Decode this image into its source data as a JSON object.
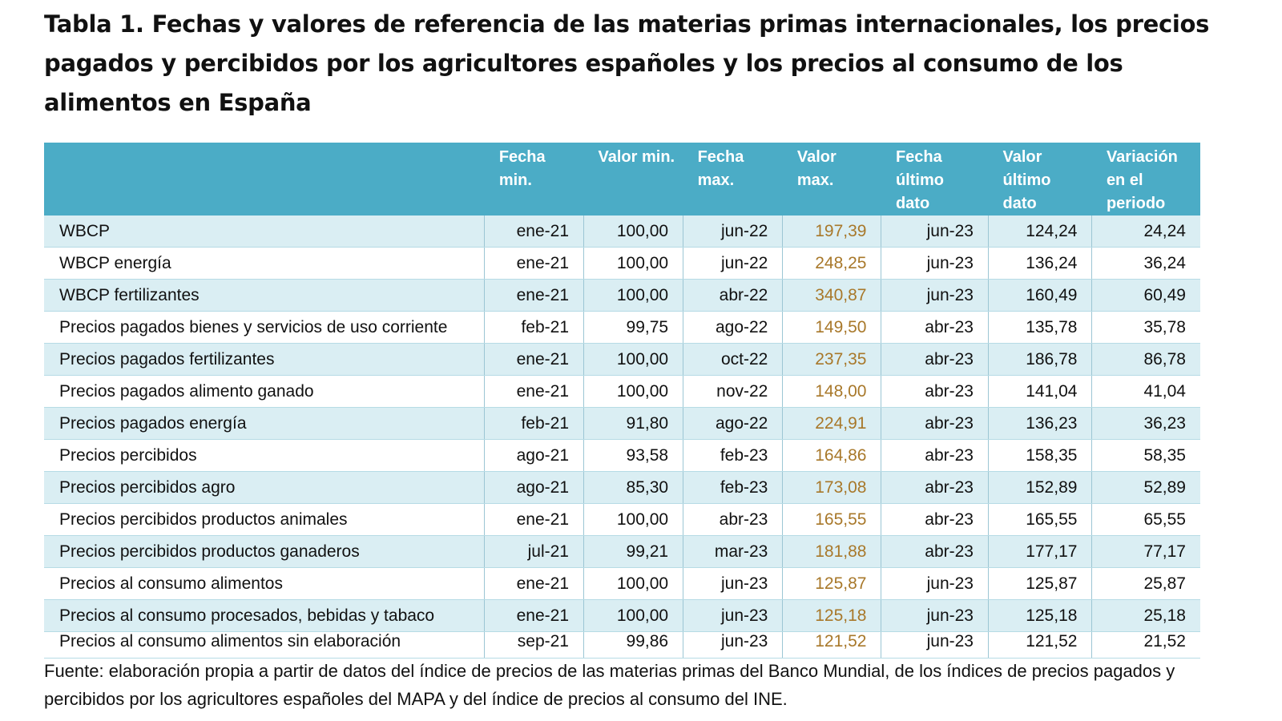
{
  "title": "Tabla 1. Fechas y valores de referencia de las materias primas internacionales, los precios pagados y percibidos por los agricultores españoles y los precios al consumo de los alimentos en España",
  "colors": {
    "header_bg": "#4bacc6",
    "row_alt": "#daeef3",
    "valor_max_text": "#a8782a"
  },
  "headers": [
    "",
    "Fecha min.",
    "Valor min.",
    "Fecha max.",
    "Valor max.",
    "Fecha último dato",
    "Valor último dato",
    "Variación en el periodo"
  ],
  "rows": [
    [
      "WBCP",
      "ene-21",
      "100,00",
      "jun-22",
      "197,39",
      "jun-23",
      "124,24",
      "24,24"
    ],
    [
      "WBCP energía",
      "ene-21",
      "100,00",
      "jun-22",
      "248,25",
      "jun-23",
      "136,24",
      "36,24"
    ],
    [
      "WBCP fertilizantes",
      "ene-21",
      "100,00",
      "abr-22",
      "340,87",
      "jun-23",
      "160,49",
      "60,49"
    ],
    [
      "Precios pagados bienes y servicios de uso corriente",
      "feb-21",
      "99,75",
      "ago-22",
      "149,50",
      "abr-23",
      "135,78",
      "35,78"
    ],
    [
      "Precios pagados fertilizantes",
      "ene-21",
      "100,00",
      "oct-22",
      "237,35",
      "abr-23",
      "186,78",
      "86,78"
    ],
    [
      "Precios pagados alimento ganado",
      "ene-21",
      "100,00",
      "nov-22",
      "148,00",
      "abr-23",
      "141,04",
      "41,04"
    ],
    [
      "Precios pagados energía",
      "feb-21",
      "91,80",
      "ago-22",
      "224,91",
      "abr-23",
      "136,23",
      "36,23"
    ],
    [
      "Precios percibidos",
      "ago-21",
      "93,58",
      "feb-23",
      "164,86",
      "abr-23",
      "158,35",
      "58,35"
    ],
    [
      "Precios percibidos agro",
      "ago-21",
      "85,30",
      "feb-23",
      "173,08",
      "abr-23",
      "152,89",
      "52,89"
    ],
    [
      "Precios percibidos productos animales",
      "ene-21",
      "100,00",
      "abr-23",
      "165,55",
      "abr-23",
      "165,55",
      "65,55"
    ],
    [
      "Precios percibidos productos ganaderos",
      "jul-21",
      "99,21",
      "mar-23",
      "181,88",
      "abr-23",
      "177,17",
      "77,17"
    ],
    [
      "Precios al consumo alimentos",
      "ene-21",
      "100,00",
      "jun-23",
      "125,87",
      "jun-23",
      "125,87",
      "25,87"
    ],
    [
      "Precios al consumo procesados, bebidas y tabaco",
      "ene-21",
      "100,00",
      "jun-23",
      "125,18",
      "jun-23",
      "125,18",
      "25,18"
    ],
    [
      "Precios al consumo alimentos sin elaboración",
      "sep-21",
      "99,86",
      "jun-23",
      "121,52",
      "jun-23",
      "121,52",
      "21,52"
    ]
  ],
  "source": "Fuente: elaboración propia a partir de datos del índice de precios de las materias primas del Banco Mundial, de los índices de precios pagados y percibidos por los agricultores españoles del MAPA y del índice de precios al consumo del INE."
}
